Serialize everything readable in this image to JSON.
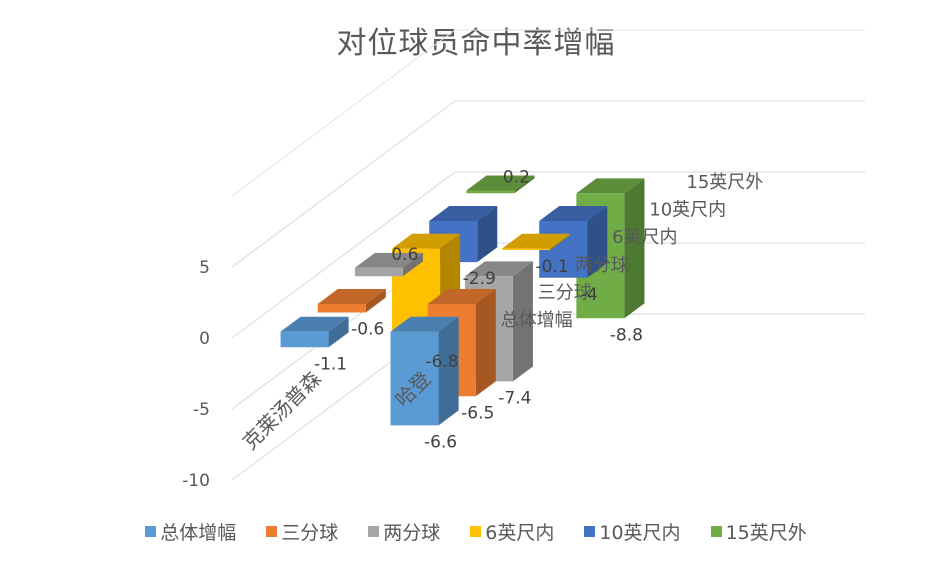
{
  "title": "对位球员命中率增幅",
  "chart_data": {
    "type": "bar3d",
    "title": "对位球员命中率增幅",
    "categories": [
      "克莱汤普森",
      "哈登"
    ],
    "series": [
      {
        "name": "总体增幅",
        "color": "#5B9BD5",
        "values": [
          -1.1,
          -6.6
        ]
      },
      {
        "name": "三分球",
        "color": "#ED7D31",
        "values": [
          -0.6,
          -6.5
        ]
      },
      {
        "name": "两分球",
        "color": "#A5A5A5",
        "values": [
          0.6,
          -7.4
        ]
      },
      {
        "name": "6英尺内",
        "color": "#FFC000",
        "values": [
          -6.8,
          -0.1
        ]
      },
      {
        "name": "10英尺内",
        "color": "#4472C4",
        "values": [
          -2.9,
          -4
        ]
      },
      {
        "name": "15英尺外",
        "color": "#70AD47",
        "values": [
          0.2,
          -8.8
        ]
      }
    ],
    "yticks": [
      5,
      0,
      -5,
      -10
    ],
    "ylim": [
      -10,
      5
    ],
    "xlabel": "",
    "ylabel": "",
    "legend_position": "bottom",
    "grid": true
  },
  "legend": [
    {
      "label": "总体增幅",
      "color": "#5B9BD5"
    },
    {
      "label": "三分球",
      "color": "#ED7D31"
    },
    {
      "label": "两分球",
      "color": "#A5A5A5"
    },
    {
      "label": "6英尺内",
      "color": "#FFC000"
    },
    {
      "label": "10英尺内",
      "color": "#4472C4"
    },
    {
      "label": "15英尺外",
      "color": "#70AD47"
    }
  ]
}
